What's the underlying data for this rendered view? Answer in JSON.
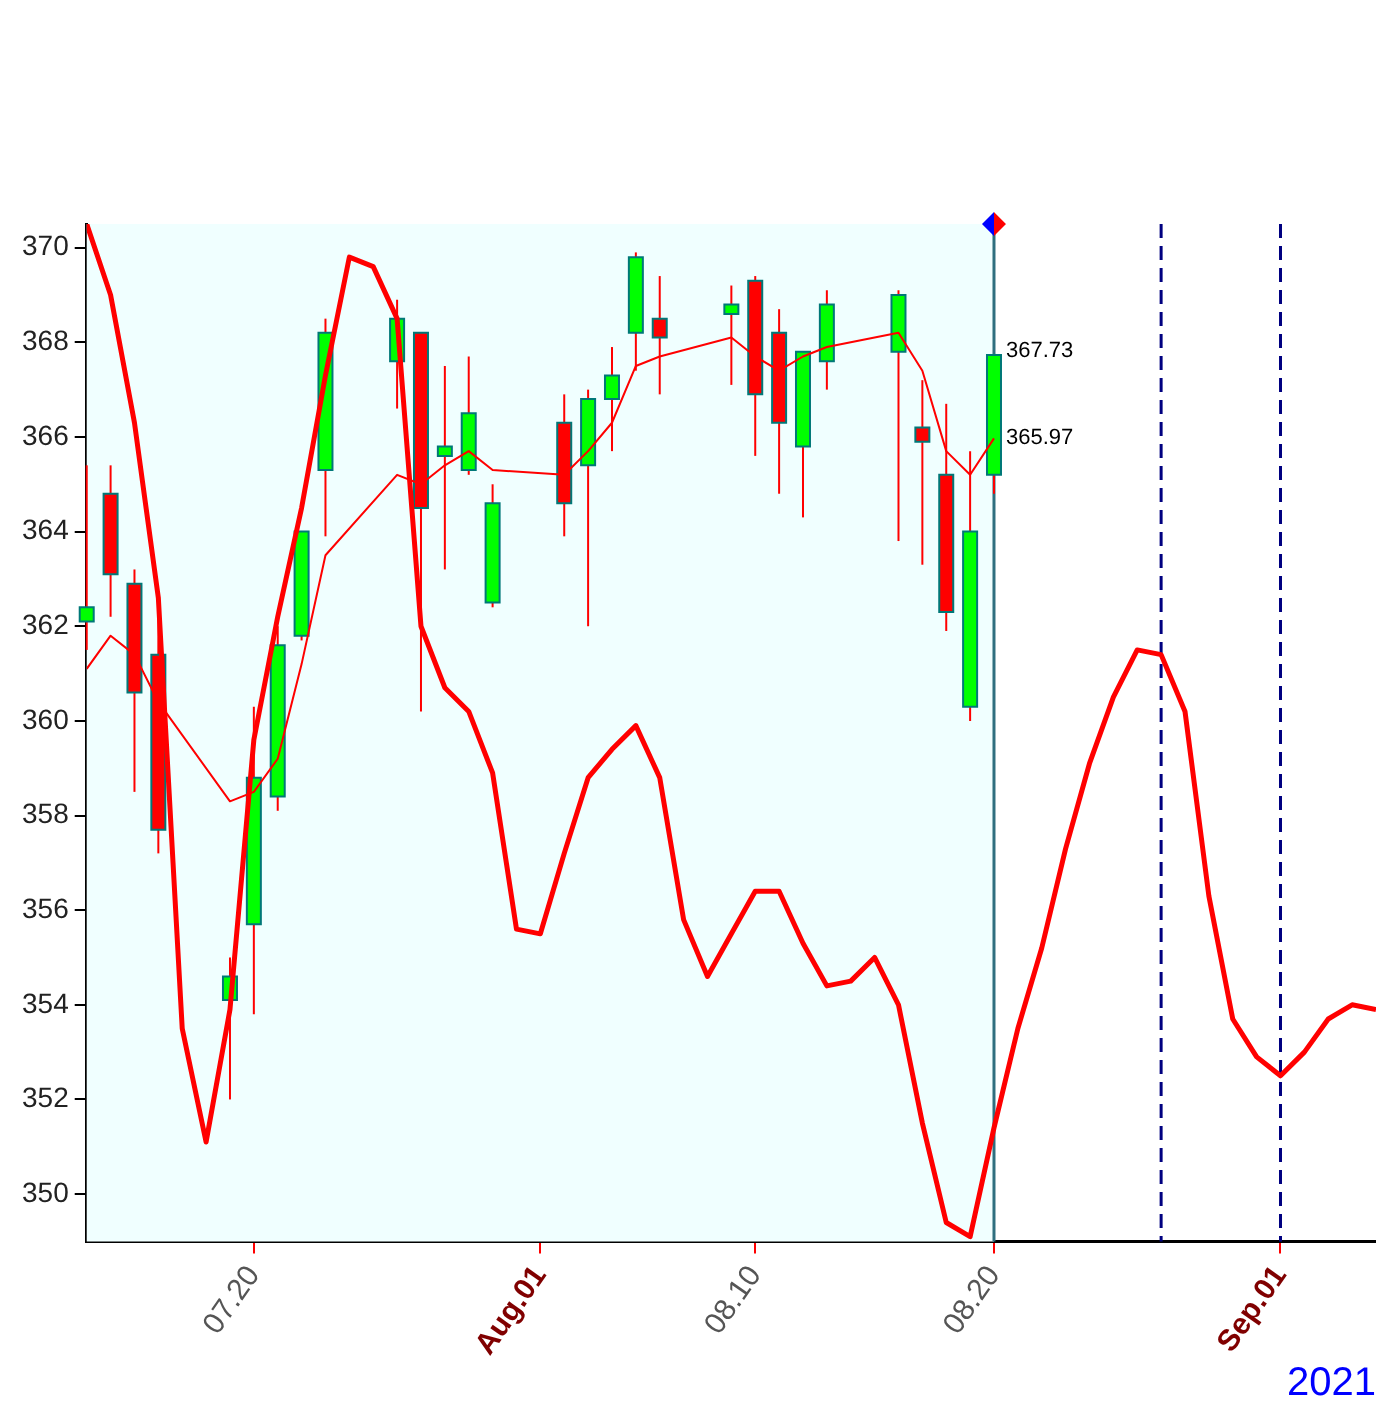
{
  "chart_data": {
    "type": "candlestick",
    "xlabel": "2021",
    "xlim": [
      "2021-07-13",
      "2021-09-05"
    ],
    "ylim": [
      349,
      370.5
    ],
    "xticks": [
      {
        "value": "2021-07-20",
        "label": "07.20"
      },
      {
        "value": "2021-08-01",
        "label": "Aug.01"
      },
      {
        "value": "2021-08-10",
        "label": "08.10"
      },
      {
        "value": "2021-08-20",
        "label": "08.20"
      },
      {
        "value": "2021-09-01",
        "label": "Sep.01"
      }
    ],
    "yticks": [
      350,
      352,
      354,
      356,
      358,
      360,
      362,
      364,
      366,
      368,
      370
    ],
    "grid": false,
    "legend": false,
    "marker": "none",
    "series": [
      {
        "type": "line",
        "color": "#ff0000",
        "x": [
          "2021-07-13",
          "2021-07-14",
          "2021-07-15",
          "2021-07-16",
          "2021-07-19",
          "2021-07-20",
          "2021-07-21",
          "2021-07-22",
          "2021-07-23",
          "2021-07-26",
          "2021-07-27",
          "2021-07-28",
          "2021-07-29",
          "2021-07-30",
          "2021-08-02",
          "2021-08-03",
          "2021-08-04",
          "2021-08-05",
          "2021-08-06",
          "2021-08-09",
          "2021-08-10",
          "2021-08-11",
          "2021-08-12",
          "2021-08-13",
          "2021-08-16",
          "2021-08-17",
          "2021-08-18",
          "2021-08-19",
          "2021-08-20"
        ],
        "values": [
          361.1,
          361.8,
          361.4,
          360.4,
          358.3,
          358.5,
          359.2,
          361.2,
          363.5,
          365.2,
          365.0,
          365.4,
          365.7,
          365.3,
          365.2,
          365.7,
          366.3,
          367.5,
          367.7,
          368.1,
          367.7,
          367.4,
          367.7,
          367.9,
          368.2,
          367.4,
          365.7,
          365.2,
          365.97
        ]
      },
      {
        "type": "line",
        "color": "#ff0000",
        "x": [
          "2021-07-13",
          "2021-07-14",
          "2021-07-15",
          "2021-07-16",
          "2021-07-17",
          "2021-07-18",
          "2021-07-19",
          "2021-07-20",
          "2021-07-21",
          "2021-07-22",
          "2021-07-23",
          "2021-07-24",
          "2021-07-25",
          "2021-07-26",
          "2021-07-27",
          "2021-07-28",
          "2021-07-29",
          "2021-07-30",
          "2021-07-31",
          "2021-08-01",
          "2021-08-02",
          "2021-08-03",
          "2021-08-04",
          "2021-08-05",
          "2021-08-06",
          "2021-08-07",
          "2021-08-08",
          "2021-08-09",
          "2021-08-10",
          "2021-08-11",
          "2021-08-12",
          "2021-08-13",
          "2021-08-14",
          "2021-08-15",
          "2021-08-16",
          "2021-08-17",
          "2021-08-18",
          "2021-08-19",
          "2021-08-20",
          "2021-08-21",
          "2021-08-22",
          "2021-08-23",
          "2021-08-24",
          "2021-08-25",
          "2021-08-26",
          "2021-08-27",
          "2021-08-28",
          "2021-08-29",
          "2021-08-30",
          "2021-08-31",
          "2021-09-01",
          "2021-09-02",
          "2021-09-03",
          "2021-09-04",
          "2021-09-05"
        ],
        "values": [
          370.5,
          369.0,
          366.3,
          362.6,
          353.5,
          351.1,
          353.9,
          359.6,
          362.2,
          364.5,
          367.3,
          369.8,
          369.6,
          368.5,
          362.0,
          360.7,
          360.2,
          358.9,
          355.6,
          355.5,
          357.2,
          358.8,
          359.4,
          359.9,
          358.8,
          355.8,
          354.6,
          355.5,
          356.4,
          356.4,
          355.3,
          354.4,
          354.5,
          355.0,
          354.0,
          351.5,
          349.4,
          349.1,
          351.4,
          353.5,
          355.2,
          357.3,
          359.1,
          360.5,
          361.5,
          361.4,
          360.2,
          356.3,
          353.7,
          352.9,
          352.5,
          353.0,
          353.7,
          354.0,
          353.9
        ]
      },
      {
        "type": "candlestick",
        "x": [
          "2021-07-13",
          "2021-07-14",
          "2021-07-15",
          "2021-07-16",
          "2021-07-19",
          "2021-07-20",
          "2021-07-21",
          "2021-07-22",
          "2021-07-23",
          "2021-07-26",
          "2021-07-27",
          "2021-07-28",
          "2021-07-29",
          "2021-07-30",
          "2021-08-02",
          "2021-08-03",
          "2021-08-04",
          "2021-08-05",
          "2021-08-06",
          "2021-08-09",
          "2021-08-10",
          "2021-08-11",
          "2021-08-12",
          "2021-08-13",
          "2021-08-16",
          "2021-08-17",
          "2021-08-18",
          "2021-08-19",
          "2021-08-20"
        ],
        "ohlc": [
          [
            362.1,
            365.4,
            361.5,
            362.4
          ],
          [
            364.8,
            365.4,
            362.2,
            363.1
          ],
          [
            362.9,
            363.2,
            358.5,
            360.6
          ],
          [
            361.4,
            362.4,
            357.2,
            357.7
          ],
          [
            354.1,
            355.0,
            352.0,
            354.6
          ],
          [
            355.7,
            360.3,
            353.8,
            358.8
          ],
          [
            358.4,
            362.0,
            358.1,
            361.6
          ],
          [
            361.8,
            364.0,
            361.7,
            364.0
          ],
          [
            365.3,
            368.5,
            363.9,
            368.2
          ],
          [
            367.6,
            368.9,
            366.6,
            368.5
          ],
          [
            368.2,
            368.2,
            360.2,
            364.5
          ],
          [
            365.6,
            367.5,
            363.2,
            365.8
          ],
          [
            365.3,
            367.7,
            365.2,
            366.5
          ],
          [
            362.5,
            365.0,
            362.4,
            364.6
          ],
          [
            366.3,
            366.9,
            363.9,
            364.6
          ],
          [
            365.4,
            367.0,
            362.0,
            366.8
          ],
          [
            366.8,
            367.9,
            365.7,
            367.3
          ],
          [
            368.2,
            369.9,
            367.4,
            369.8
          ],
          [
            368.5,
            369.4,
            366.9,
            368.1
          ],
          [
            368.6,
            369.2,
            367.1,
            368.8
          ],
          [
            369.3,
            369.4,
            365.6,
            366.9
          ],
          [
            368.2,
            368.7,
            364.8,
            366.3
          ],
          [
            365.8,
            367.8,
            364.3,
            367.8
          ],
          [
            367.6,
            369.1,
            367.0,
            368.8
          ],
          [
            367.8,
            369.1,
            363.8,
            369.0
          ],
          [
            366.2,
            367.2,
            363.3,
            365.9
          ],
          [
            365.2,
            366.7,
            361.9,
            362.3
          ],
          [
            360.3,
            365.7,
            360.0,
            364.0
          ],
          [
            365.2,
            367.73,
            364.8,
            367.73
          ]
        ],
        "colors": [
          "#00ff00",
          "#ff0000",
          "#ff0000",
          "#ff0000",
          "#00ff00",
          "#00ff00",
          "#00ff00",
          "#00ff00",
          "#00ff00",
          "#00ff00",
          "#ff0000",
          "#00ff00",
          "#00ff00",
          "#00ff00",
          "#ff0000",
          "#00ff00",
          "#00ff00",
          "#00ff00",
          "#ff0000",
          "#00ff00",
          "#ff0000",
          "#ff0000",
          "#00ff00",
          "#00ff00",
          "#00ff00",
          "#ff0000",
          "#ff0000",
          "#00ff00",
          "#00ff00"
        ]
      }
    ],
    "bands": [
      {
        "axis": "x",
        "from": "2021-07-13",
        "to": "2021-08-20",
        "label": null,
        "color": "#f0ffff"
      }
    ],
    "ref_lines": [
      {
        "axis": "x",
        "value": "2021-08-20",
        "label": null,
        "color": "#2f6f7f",
        "line_style": "solid"
      },
      {
        "axis": "x",
        "value": "2021-08-27",
        "label": null,
        "color": "#000080",
        "line_style": "dashed"
      },
      {
        "axis": "x",
        "value": "2021-09-01",
        "label": null,
        "color": "#000080",
        "line_style": "dashed"
      }
    ],
    "annotations": [
      {
        "text": "367.73",
        "x": "2021-08-20",
        "y": 367.73
      },
      {
        "text": "365.97",
        "x": "2021-08-20",
        "y": 365.97
      }
    ]
  }
}
